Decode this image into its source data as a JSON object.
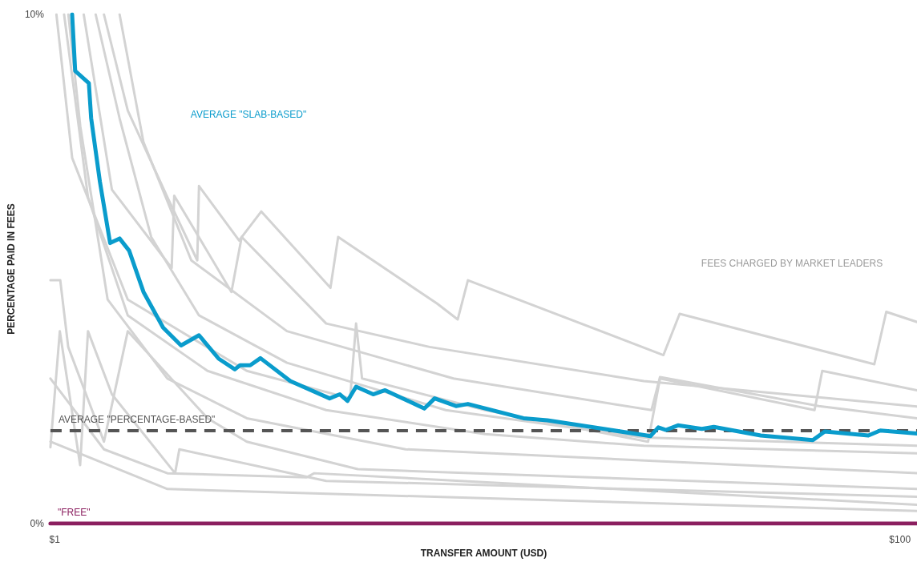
{
  "chart_data": {
    "type": "line",
    "xlabel": "TRANSFER AMOUNT (USD)",
    "ylabel": "PERCENTAGE PAID IN FEES",
    "xlim": [
      0.5,
      102
    ],
    "xticks": [
      {
        "value": 1,
        "label": "$1"
      },
      {
        "value": 100,
        "label": "$100"
      }
    ],
    "ylim": [
      0,
      10
    ],
    "yticks": [
      {
        "value": 0,
        "label": "0%"
      },
      {
        "value": 10,
        "label": "10%"
      }
    ],
    "grid": false,
    "marker": "none",
    "line_style": "solid",
    "series": [
      {
        "color": "#d3d3d3",
        "x": [
          6.77,
          9.56,
          14.2,
          17.7,
          17.9,
          22.6,
          25.2,
          33.3,
          34.2,
          45.8,
          48.2,
          49.4,
          72.3,
          74.2,
          97.0,
          98.4,
          102
        ],
        "values": [
          10,
          8.11,
          6.41,
          5.17,
          6.63,
          5.56,
          6.13,
          4.63,
          5.63,
          4.32,
          4.01,
          4.78,
          3.31,
          4.12,
          3.13,
          4.16,
          3.96
        ]
      },
      {
        "color": "#d3d3d3",
        "x": [
          4.4,
          7.7,
          14.7,
          15.0,
          21.7,
          22.9,
          32.8,
          44.9,
          70.0,
          102
        ],
        "values": [
          10,
          6.56,
          5.02,
          6.44,
          4.55,
          5.63,
          3.93,
          3.47,
          2.8,
          2.3
        ]
      },
      {
        "color": "#d3d3d3",
        "x": [
          1.2,
          3.05,
          9.56,
          23.5,
          35.6,
          36.3,
          37.0,
          51.4,
          70.5,
          71.9,
          90.0,
          90.9,
          102
        ],
        "values": [
          10,
          7.18,
          4.4,
          3.0,
          2.46,
          3.93,
          2.85,
          2.23,
          1.61,
          2.85,
          2.23,
          3.0,
          2.62
        ]
      },
      {
        "color": "#d3d3d3",
        "x": [
          2.1,
          4.9,
          9.56,
          18.9,
          32.8,
          51.4,
          70.0,
          102
        ],
        "values": [
          10,
          6.41,
          4.09,
          3.0,
          2.23,
          1.76,
          1.53,
          1.38
        ]
      },
      {
        "color": "#d3d3d3",
        "x": [
          0.5,
          1.65,
          2.58,
          6.77,
          9.56,
          18.9,
          23.5,
          36.5,
          102
        ],
        "values": [
          4.78,
          4.78,
          3.47,
          1.61,
          3.78,
          2.07,
          1.61,
          1.07,
          0.68
        ]
      },
      {
        "color": "#d3d3d3",
        "x": [
          0.5,
          1.6,
          3.98,
          4.9,
          7.7,
          15.1,
          15.6,
          32.8,
          102
        ],
        "values": [
          1.5,
          3.78,
          1.15,
          3.78,
          2.54,
          0.99,
          1.46,
          0.84,
          0.53
        ]
      },
      {
        "color": "#d3d3d3",
        "x": [
          0.5,
          6.77,
          14.2,
          30.5,
          31.4,
          102
        ],
        "values": [
          2.85,
          1.46,
          0.99,
          0.91,
          0.99,
          0.37
        ]
      },
      {
        "color": "#d3d3d3",
        "x": [
          0.5,
          14.2,
          102
        ],
        "values": [
          1.61,
          0.68,
          0.25
        ]
      },
      {
        "color": "#d3d3d3",
        "x": [
          5.8,
          8.6,
          12.3,
          17.9,
          28.2,
          46.8,
          70.0,
          102
        ],
        "values": [
          10,
          7.96,
          5.63,
          4.09,
          3.16,
          2.23,
          1.69,
          1.53
        ]
      },
      {
        "color": "#d3d3d3",
        "x": [
          2.6,
          4.0,
          7.2,
          14.2,
          23.5,
          42.1,
          102
        ],
        "values": [
          10,
          7.8,
          4.4,
          2.85,
          2.07,
          1.46,
          0.99
        ]
      },
      {
        "color": "#d3d3d3",
        "x": [
          8.6,
          11.4,
          17.0,
          28.2,
          47.7,
          70.9,
          71.9,
          90.5,
          102
        ],
        "values": [
          10,
          7.49,
          5.17,
          3.78,
          2.85,
          2.23,
          2.88,
          2.31,
          2.07
        ]
      },
      {
        "name": "\"FREE\"",
        "color": "#8b1f5f",
        "x": [
          0.5,
          102
        ],
        "values": [
          0,
          0
        ]
      },
      {
        "color": "#0a9ccc",
        "x": [
          3.04,
          3.4,
          5.0,
          5.27,
          6.29,
          7.49,
          8.6,
          9.72,
          11.4,
          13.7,
          15.8,
          17.9,
          20.2,
          22.1,
          22.7,
          23.9,
          25.1,
          28.6,
          33.2,
          34.4,
          35.3,
          36.3,
          38.3,
          39.7,
          44.3,
          45.5,
          48.0,
          49.4,
          55.9,
          58.7,
          66.1,
          70.8,
          71.7,
          72.6,
          74.0,
          76.8,
          78.2,
          83.7,
          89.8,
          91.2,
          96.3,
          97.7,
          102
        ],
        "values": [
          10,
          8.89,
          8.65,
          7.96,
          6.72,
          5.51,
          5.6,
          5.36,
          4.55,
          3.85,
          3.5,
          3.7,
          3.24,
          3.03,
          3.11,
          3.11,
          3.25,
          2.8,
          2.46,
          2.54,
          2.41,
          2.69,
          2.54,
          2.62,
          2.26,
          2.46,
          2.31,
          2.35,
          2.07,
          2.03,
          1.84,
          1.72,
          1.89,
          1.84,
          1.93,
          1.86,
          1.9,
          1.73,
          1.64,
          1.81,
          1.73,
          1.83,
          1.77
        ]
      }
    ],
    "ref_lines": [
      {
        "axis": "y",
        "value": 1.83,
        "label": "AVERAGE \"PERCENTAGE-BASED\"",
        "color": "#555555",
        "line_style": "dashed"
      }
    ],
    "annotations": [
      "AVERAGE \"SLAB-BASED\"",
      "FEES CHARGED BY MARKET LEADERS"
    ]
  }
}
